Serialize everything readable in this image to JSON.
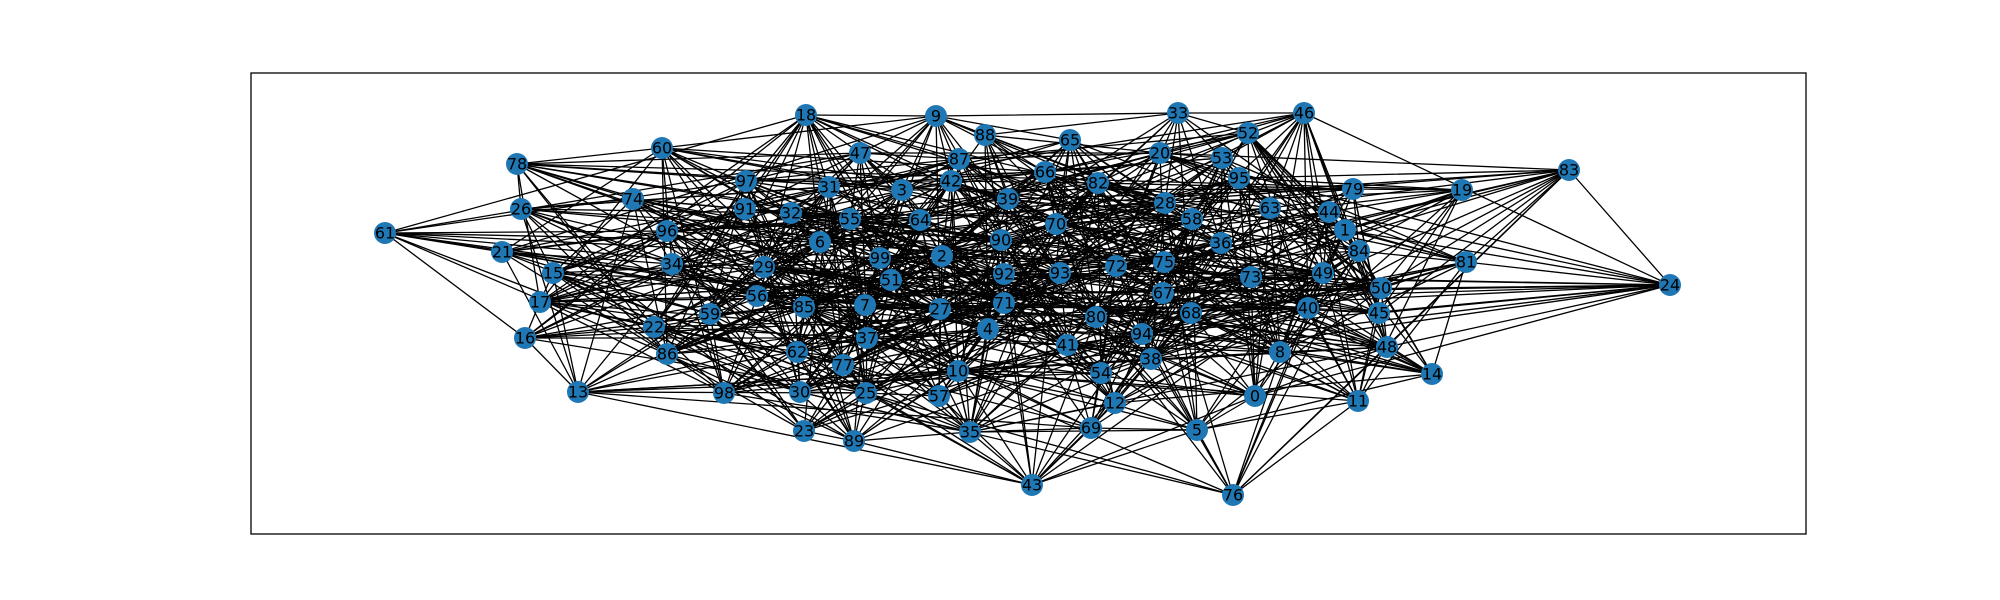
{
  "graph": {
    "node_color": "#1f77b4",
    "edge_color": "#000000",
    "nodes": [
      {
        "id": "0"
      },
      {
        "id": "1"
      },
      {
        "id": "2"
      },
      {
        "id": "3"
      },
      {
        "id": "4"
      },
      {
        "id": "5"
      },
      {
        "id": "6"
      },
      {
        "id": "7"
      },
      {
        "id": "8"
      },
      {
        "id": "9"
      },
      {
        "id": "10"
      },
      {
        "id": "11"
      },
      {
        "id": "12"
      },
      {
        "id": "13"
      },
      {
        "id": "14"
      },
      {
        "id": "15"
      },
      {
        "id": "16"
      },
      {
        "id": "17"
      },
      {
        "id": "18"
      },
      {
        "id": "19"
      },
      {
        "id": "20"
      },
      {
        "id": "21"
      },
      {
        "id": "22"
      },
      {
        "id": "23"
      },
      {
        "id": "24"
      },
      {
        "id": "25"
      },
      {
        "id": "26"
      },
      {
        "id": "27"
      },
      {
        "id": "28"
      },
      {
        "id": "29"
      },
      {
        "id": "30"
      },
      {
        "id": "31"
      },
      {
        "id": "32"
      },
      {
        "id": "33"
      },
      {
        "id": "34"
      },
      {
        "id": "35"
      },
      {
        "id": "36"
      },
      {
        "id": "37"
      },
      {
        "id": "38"
      },
      {
        "id": "39"
      },
      {
        "id": "40"
      },
      {
        "id": "41"
      },
      {
        "id": "42"
      },
      {
        "id": "43"
      },
      {
        "id": "44"
      },
      {
        "id": "45"
      },
      {
        "id": "46"
      },
      {
        "id": "47"
      },
      {
        "id": "48"
      },
      {
        "id": "49"
      },
      {
        "id": "50"
      },
      {
        "id": "51"
      },
      {
        "id": "52"
      },
      {
        "id": "53"
      },
      {
        "id": "54"
      },
      {
        "id": "55"
      },
      {
        "id": "56"
      },
      {
        "id": "57"
      },
      {
        "id": "58"
      },
      {
        "id": "59"
      },
      {
        "id": "60"
      },
      {
        "id": "61"
      },
      {
        "id": "62"
      },
      {
        "id": "63"
      },
      {
        "id": "64"
      },
      {
        "id": "65"
      },
      {
        "id": "66"
      },
      {
        "id": "67"
      },
      {
        "id": "68"
      },
      {
        "id": "69"
      },
      {
        "id": "70"
      },
      {
        "id": "71"
      },
      {
        "id": "72"
      },
      {
        "id": "73"
      },
      {
        "id": "74"
      },
      {
        "id": "75"
      },
      {
        "id": "76"
      },
      {
        "id": "77"
      },
      {
        "id": "78"
      },
      {
        "id": "79"
      },
      {
        "id": "80"
      },
      {
        "id": "81"
      },
      {
        "id": "82"
      },
      {
        "id": "83"
      },
      {
        "id": "84"
      },
      {
        "id": "85"
      },
      {
        "id": "86"
      },
      {
        "id": "87"
      },
      {
        "id": "88"
      },
      {
        "id": "89"
      },
      {
        "id": "90"
      },
      {
        "id": "91"
      },
      {
        "id": "92"
      },
      {
        "id": "93"
      },
      {
        "id": "94"
      },
      {
        "id": "95"
      },
      {
        "id": "96"
      },
      {
        "id": "97"
      },
      {
        "id": "98"
      },
      {
        "id": "99"
      }
    ]
  }
}
